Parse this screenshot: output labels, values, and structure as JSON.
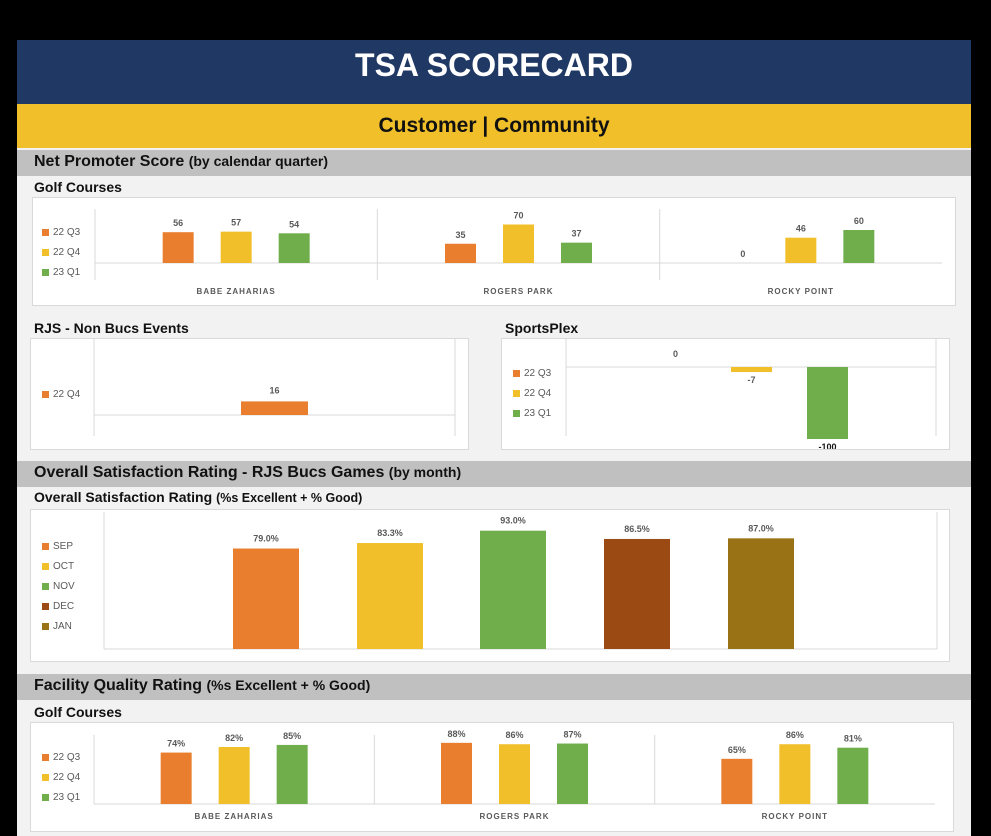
{
  "header": {
    "title": "TSA SCORECARD",
    "subtitle": "Customer | Community"
  },
  "colors": {
    "orange": "#e97f2e",
    "yellow": "#f0bf2a",
    "green": "#6fae4a",
    "brown": "#9a4a12",
    "olive": "#9a7216",
    "navy": "#1f3864"
  },
  "sections": {
    "nps": {
      "title": "Net Promoter Score",
      "suffix": "(by calendar quarter)"
    },
    "osr": {
      "title": "Overall Satisfaction Rating - RJS Bucs Games",
      "suffix": "(by month)"
    },
    "fqr": {
      "title": "Facility Quality Rating",
      "suffix": "(%s Excellent + % Good)"
    }
  },
  "subsections": {
    "golf": "Golf Courses",
    "rjs": "RJS - Non Bucs Events",
    "sportsplex": "SportsPlex",
    "osr": "Overall Satisfaction Rating",
    "osr_suffix": "(%s Excellent + % Good)",
    "fqr_golf": "Golf Courses"
  },
  "chart_data": [
    {
      "id": "nps_golf",
      "type": "bar",
      "title": "Golf Courses",
      "categories": [
        "BABE ZAHARIAS",
        "ROGERS PARK",
        "ROCKY POINT"
      ],
      "series": [
        {
          "name": "22 Q3",
          "values": [
            56,
            35,
            0
          ],
          "labels": [
            "56",
            "35",
            "0"
          ]
        },
        {
          "name": "22 Q4",
          "values": [
            57,
            70,
            46
          ],
          "labels": [
            "57",
            "70",
            "46"
          ]
        },
        {
          "name": "23 Q1",
          "values": [
            54,
            37,
            60
          ],
          "labels": [
            "54",
            "37",
            "60"
          ]
        }
      ],
      "ylim": [
        0,
        75
      ]
    },
    {
      "id": "nps_rjs",
      "type": "bar",
      "title": "RJS - Non Bucs Events",
      "categories": [
        ""
      ],
      "series": [
        {
          "name": "22 Q4",
          "values": [
            16
          ],
          "labels": [
            "16"
          ]
        }
      ],
      "ylim": [
        0,
        75
      ]
    },
    {
      "id": "nps_sportsplex",
      "type": "bar",
      "title": "SportsPlex",
      "categories": [
        ""
      ],
      "series": [
        {
          "name": "22 Q3",
          "values": [
            0
          ],
          "labels": [
            "0"
          ]
        },
        {
          "name": "22 Q4",
          "values": [
            -7
          ],
          "labels": [
            "-7"
          ]
        },
        {
          "name": "23 Q1",
          "values": [
            -100
          ],
          "labels": [
            "-100"
          ]
        }
      ],
      "ylim": [
        -100,
        0
      ]
    },
    {
      "id": "osr_rjs",
      "type": "bar",
      "title": "Overall Satisfaction Rating (%s Excellent + % Good)",
      "categories": [
        "SEP",
        "OCT",
        "NOV",
        "DEC",
        "JAN"
      ],
      "values": [
        79.0,
        83.3,
        93.0,
        86.5,
        87.0
      ],
      "labels": [
        "79.0%",
        "83.3%",
        "93.0%",
        "86.5%",
        "87.0%"
      ],
      "ylim": [
        0,
        100
      ]
    },
    {
      "id": "fqr_golf",
      "type": "bar",
      "title": "Golf Courses",
      "categories": [
        "BABE ZAHARIAS",
        "ROGERS PARK",
        "ROCKY POINT"
      ],
      "series": [
        {
          "name": "22 Q3",
          "values": [
            74,
            88,
            65
          ],
          "labels": [
            "74%",
            "88%",
            "65%"
          ]
        },
        {
          "name": "22 Q4",
          "values": [
            82,
            86,
            86
          ],
          "labels": [
            "82%",
            "86%",
            "86%"
          ]
        },
        {
          "name": "23 Q1",
          "values": [
            85,
            87,
            81
          ],
          "labels": [
            "85%",
            "87%",
            "81%"
          ]
        }
      ],
      "ylim": [
        0,
        100
      ]
    }
  ]
}
